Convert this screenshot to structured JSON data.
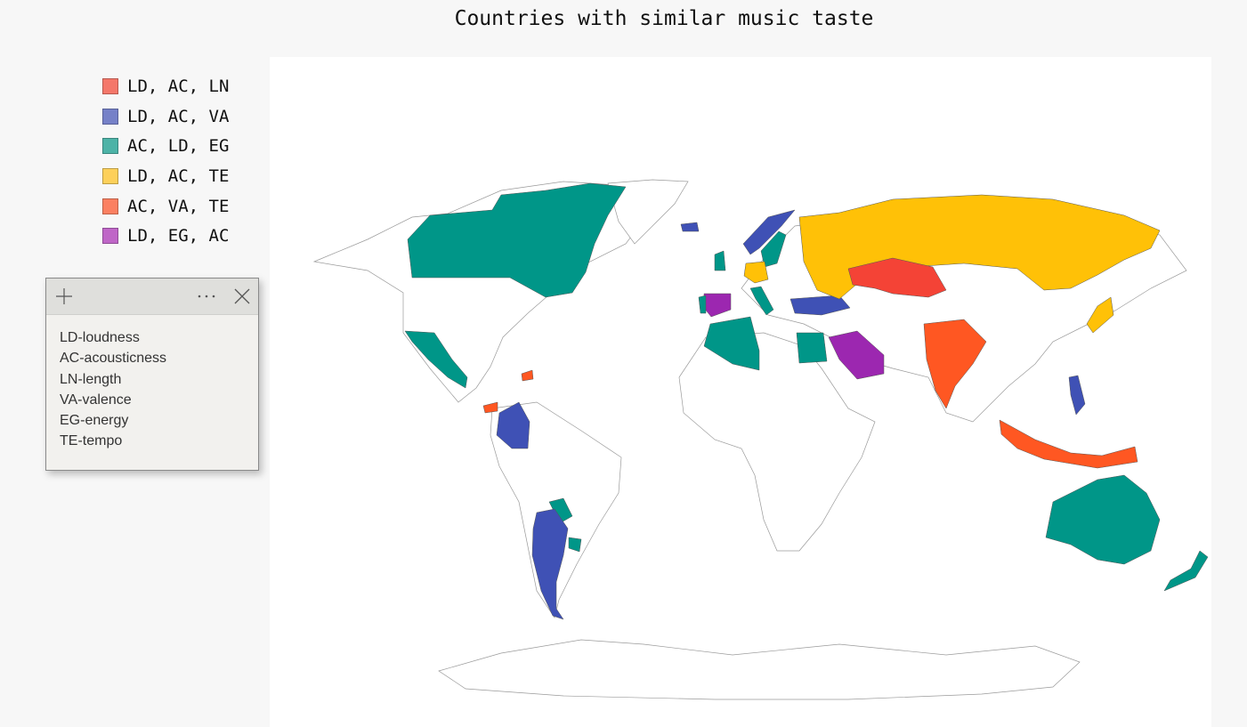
{
  "title": "Countries with similar music taste",
  "legend": [
    {
      "label": "LD, AC, LN",
      "color": "#f4776a"
    },
    {
      "label": "LD, AC, VA",
      "color": "#7681c8"
    },
    {
      "label": "AC, LD, EG",
      "color": "#4db3a7"
    },
    {
      "label": "LD, AC, TE",
      "color": "#fdd05a"
    },
    {
      "label": "AC, VA, TE",
      "color": "#fb8061"
    },
    {
      "label": "LD, EG, AC",
      "color": "#bf66c7"
    }
  ],
  "map_colors": {
    "LD, AC, LN": "#f44336",
    "LD, AC, VA": "#3f51b5",
    "AC, LD, EG": "#009688",
    "LD, AC, TE": "#ffc107",
    "AC, VA, TE": "#ff5722",
    "LD, EG, AC": "#9c27b0"
  },
  "notes": {
    "lines": [
      "LD-loudness",
      "AC-acousticness",
      "LN-length",
      "VA-valence",
      "EG-energy",
      "TE-tempo"
    ]
  },
  "icons": {
    "new_note": "plus-icon",
    "menu": "more-icon",
    "close": "close-icon"
  },
  "regions": {
    "LD, AC, LN": [
      "Kazakhstan"
    ],
    "LD, AC, VA": [
      "Colombia",
      "Argentina",
      "Turkey",
      "Norway",
      "Philippines",
      "Iceland"
    ],
    "AC, LD, EG": [
      "Canada",
      "Mexico",
      "Australia",
      "New Zealand",
      "Algeria",
      "Egypt",
      "United Kingdom",
      "Sweden",
      "Portugal",
      "Italy",
      "Paraguay",
      "Uruguay"
    ],
    "LD, AC, TE": [
      "Russia",
      "Japan",
      "Germany"
    ],
    "AC, VA, TE": [
      "India",
      "Indonesia",
      "Dominican Republic",
      "Panama"
    ],
    "LD, EG, AC": [
      "Saudi Arabia",
      "Spain"
    ]
  }
}
